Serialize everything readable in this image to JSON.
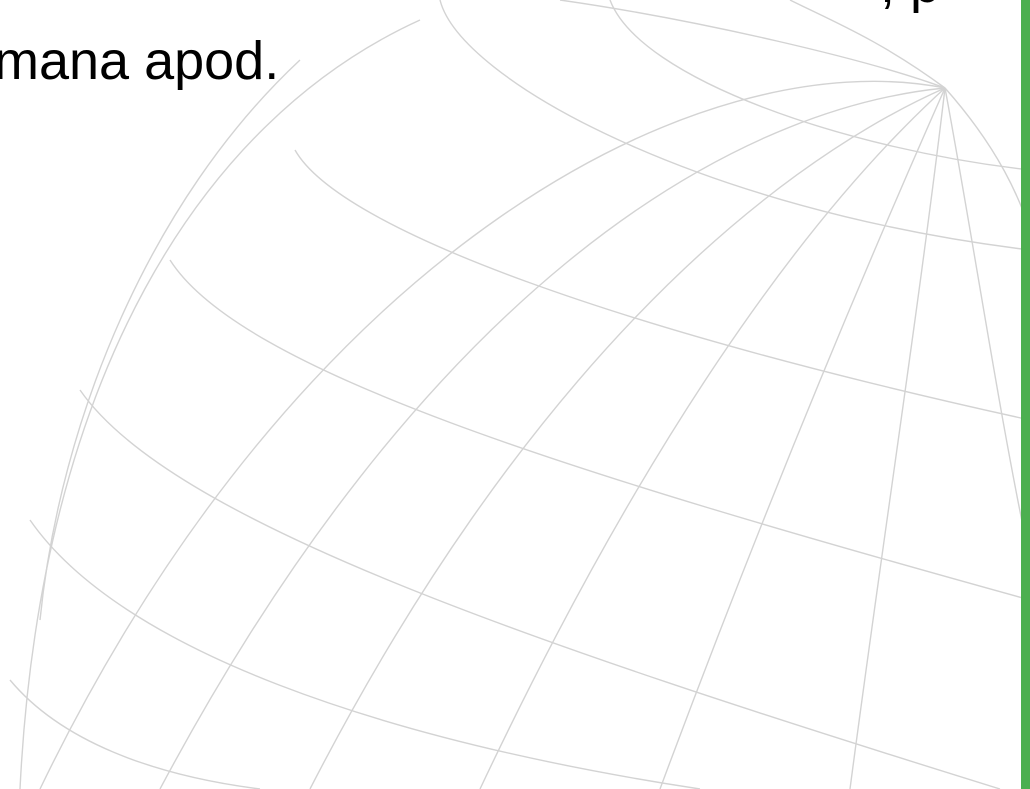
{
  "text": {
    "line_partial": ", p",
    "line_main": "mana apod."
  },
  "colors": {
    "accent": "#4caf50",
    "grid": "#d3d3d3"
  },
  "decoration": "globe-wireframe"
}
